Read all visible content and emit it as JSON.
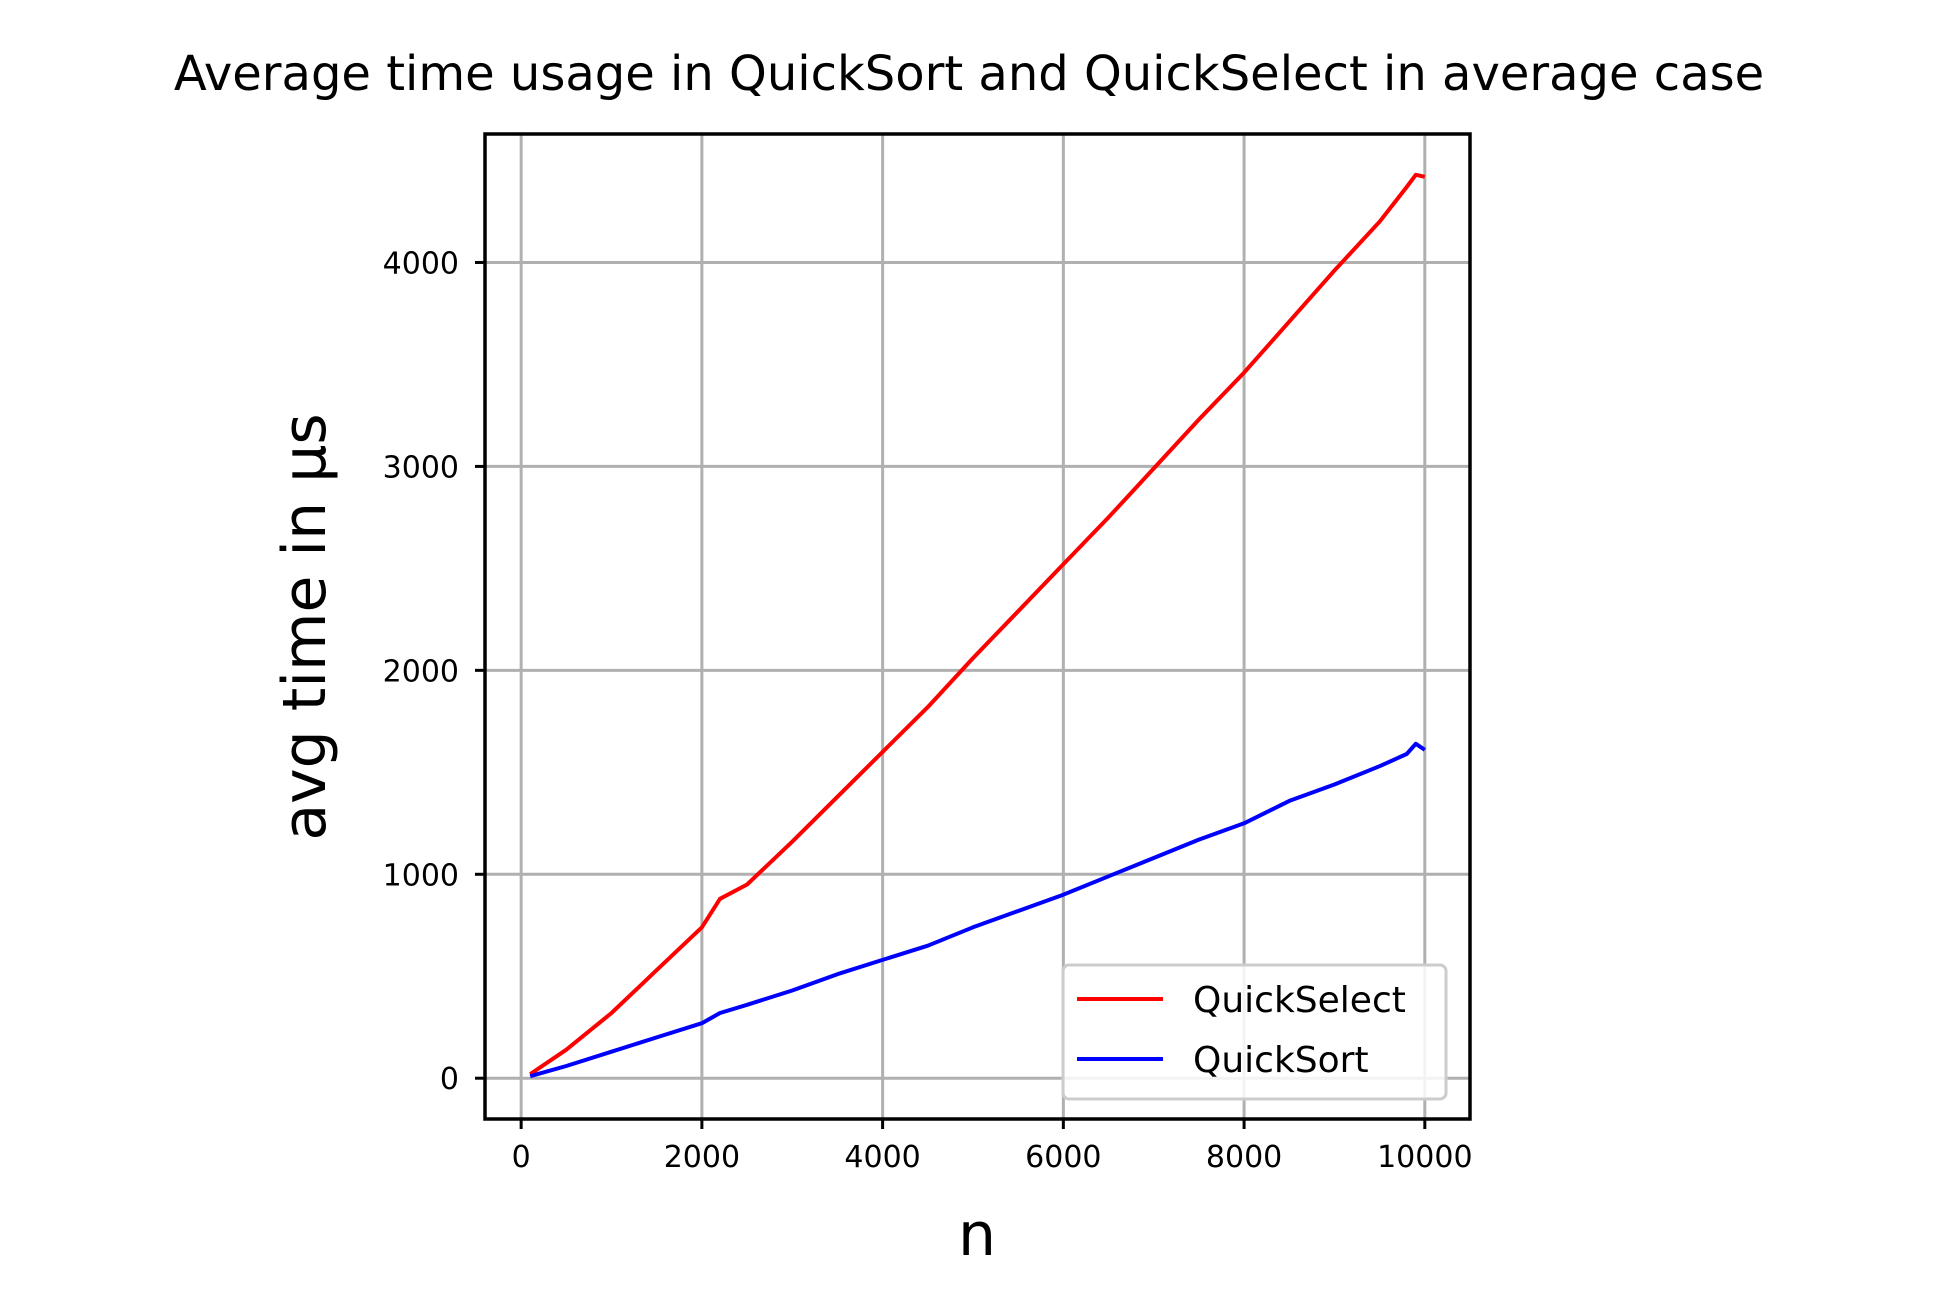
{
  "chart_data": {
    "type": "line",
    "title": "Average time usage in QuickSort and QuickSelect in average case",
    "xlabel": "n",
    "ylabel": "avg time in µs",
    "xlim": [
      -400,
      10500
    ],
    "ylim": [
      -200,
      4630
    ],
    "xticks": [
      0,
      2000,
      4000,
      6000,
      8000,
      10000
    ],
    "yticks": [
      0,
      1000,
      2000,
      3000,
      4000
    ],
    "xtick_labels": [
      "0",
      "2000",
      "4000",
      "6000",
      "8000",
      "10000"
    ],
    "ytick_labels": [
      "0",
      "1000",
      "2000",
      "3000",
      "4000"
    ],
    "grid": true,
    "legend": {
      "placement": "lower-right"
    },
    "x": [
      100,
      500,
      1000,
      1500,
      2000,
      2200,
      2500,
      3000,
      3500,
      4000,
      4500,
      5000,
      5500,
      6000,
      6500,
      7000,
      7500,
      8000,
      8500,
      9000,
      9500,
      9800,
      9900,
      10000
    ],
    "series": [
      {
        "name": "QuickSelect",
        "color": "#ff0000",
        "values": [
          20,
          140,
          320,
          530,
          740,
          880,
          950,
          1160,
          1380,
          1600,
          1820,
          2060,
          2290,
          2520,
          2750,
          2990,
          3230,
          3460,
          3710,
          3960,
          4200,
          4370,
          4430,
          4420
        ]
      },
      {
        "name": "QuickSort",
        "color": "#0000ff",
        "values": [
          10,
          60,
          130,
          200,
          270,
          320,
          360,
          430,
          510,
          580,
          650,
          740,
          820,
          900,
          990,
          1080,
          1170,
          1250,
          1360,
          1440,
          1530,
          1590,
          1640,
          1610
        ]
      }
    ]
  }
}
